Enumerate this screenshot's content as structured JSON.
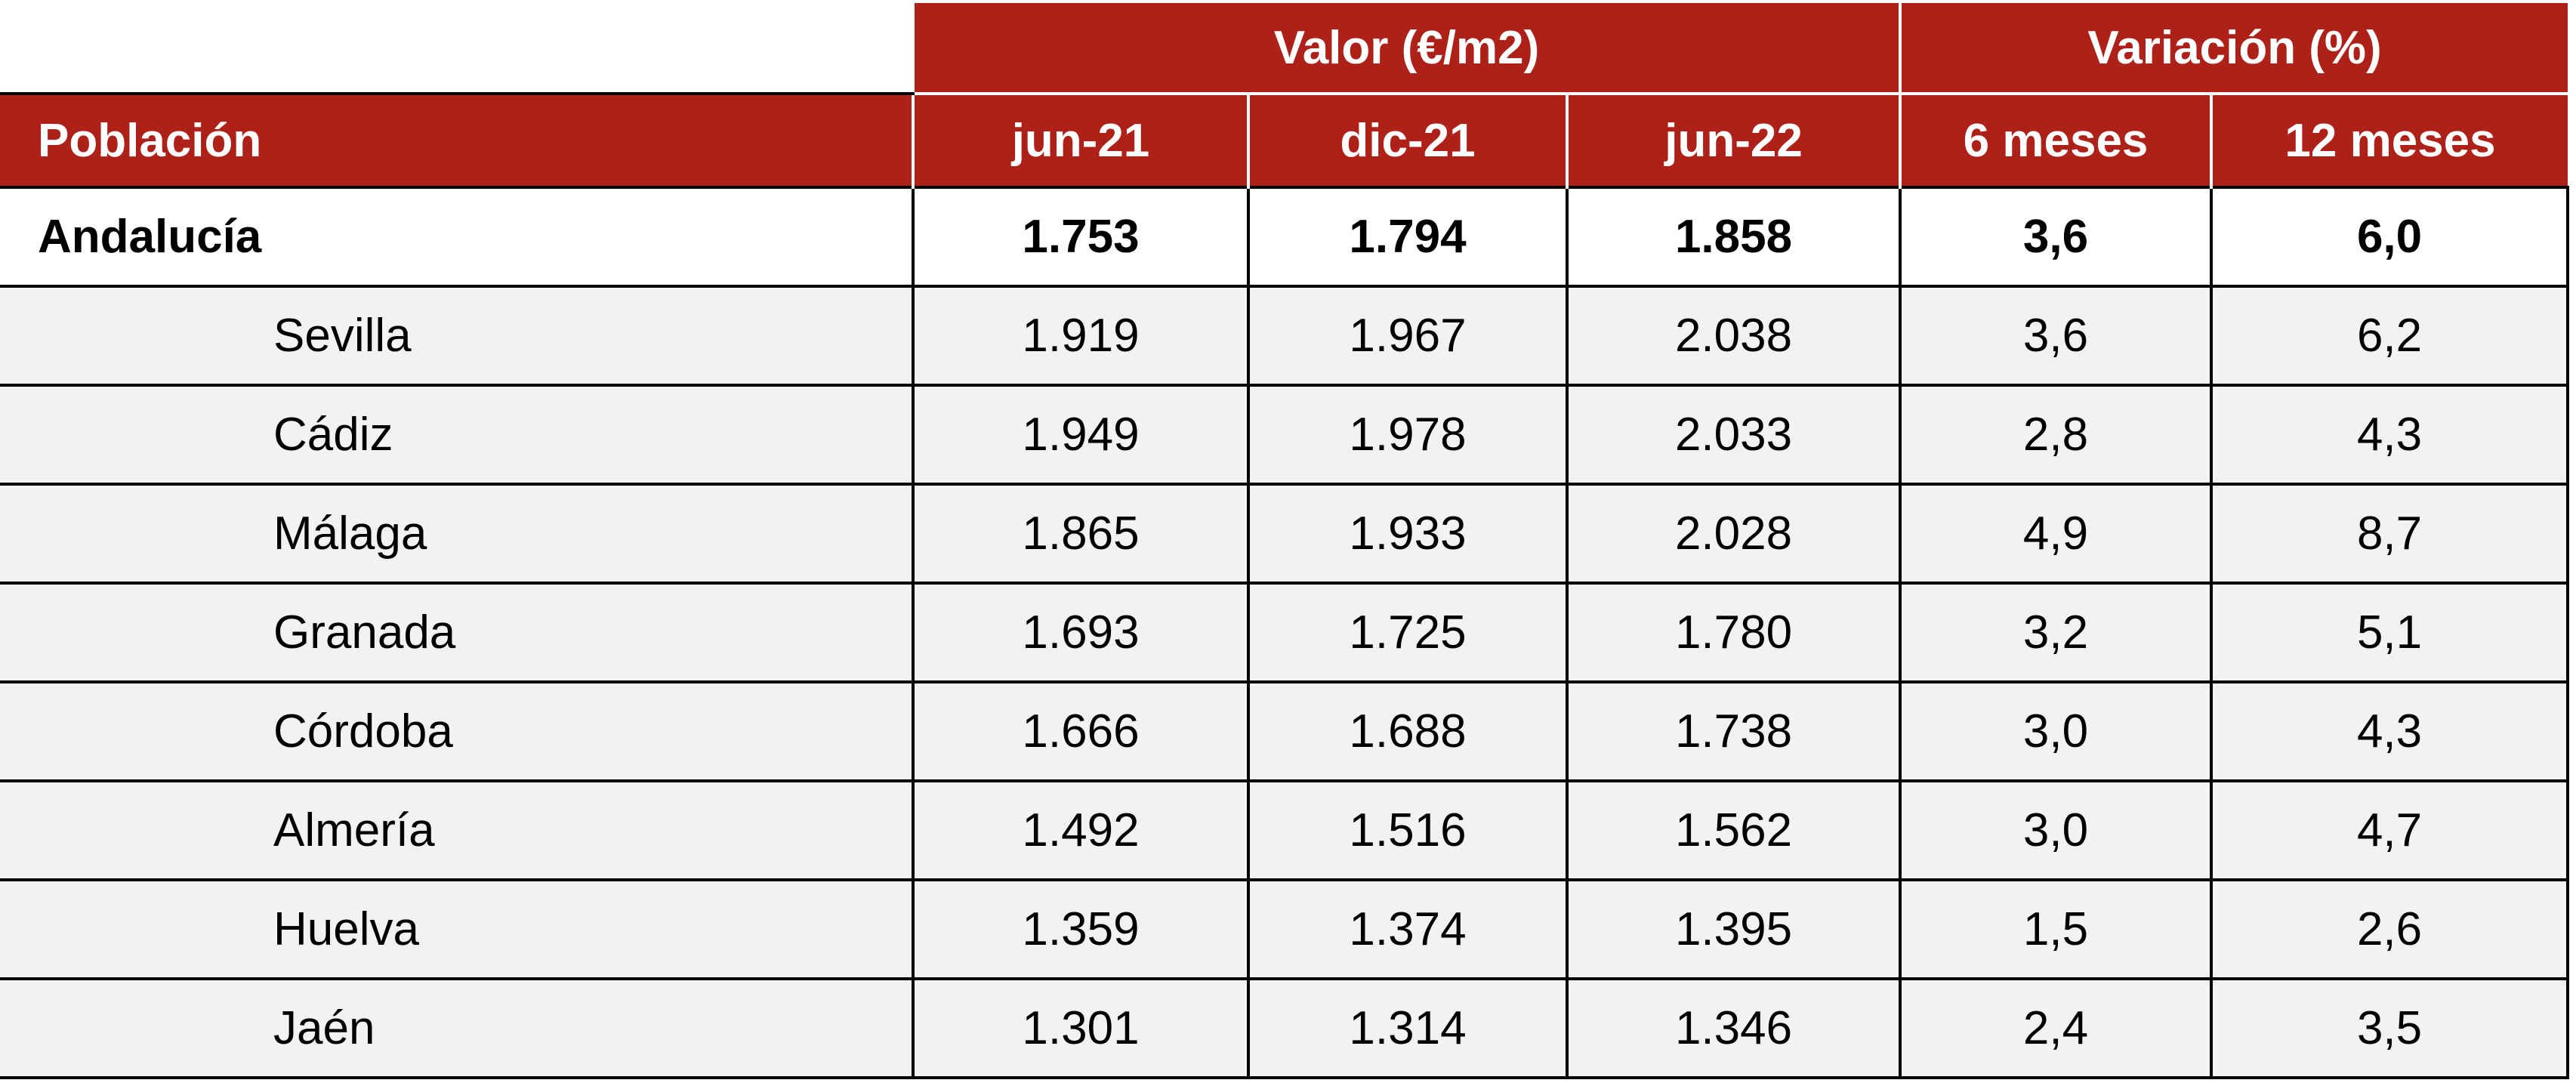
{
  "table": {
    "group_headers": [
      "Valor (€/m2)",
      "Variación (%)"
    ],
    "columns": [
      "Población",
      "jun-21",
      "dic-21",
      "jun-22",
      "6 meses",
      "12 meses"
    ],
    "rows": [
      [
        "Andalucía",
        "1.753",
        "1.794",
        "1.858",
        "3,6",
        "6,0"
      ],
      [
        "Sevilla",
        "1.919",
        "1.967",
        "2.038",
        "3,6",
        "6,2"
      ],
      [
        "Cádiz",
        "1.949",
        "1.978",
        "2.033",
        "2,8",
        "4,3"
      ],
      [
        "Málaga",
        "1.865",
        "1.933",
        "2.028",
        "4,9",
        "8,7"
      ],
      [
        "Granada",
        "1.693",
        "1.725",
        "1.780",
        "3,2",
        "5,1"
      ],
      [
        "Córdoba",
        "1.666",
        "1.688",
        "1.738",
        "3,0",
        "4,3"
      ],
      [
        "Almería",
        "1.492",
        "1.516",
        "1.562",
        "3,0",
        "4,7"
      ],
      [
        "Huelva",
        "1.359",
        "1.374",
        "1.395",
        "1,5",
        "2,6"
      ],
      [
        "Jaén",
        "1.301",
        "1.314",
        "1.346",
        "2,4",
        "3,5"
      ]
    ]
  }
}
